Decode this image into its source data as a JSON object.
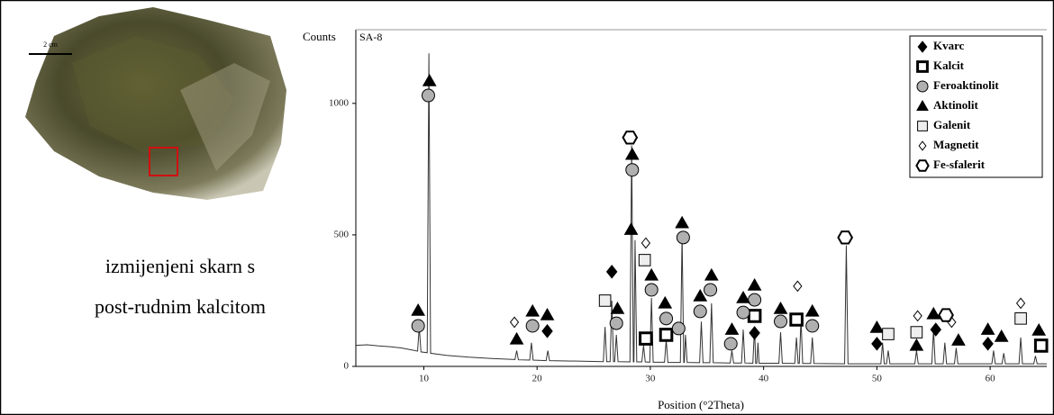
{
  "photo": {
    "scale_label": "2 cm"
  },
  "caption": [
    "izmijenjeni skarn s",
    "post-rudnim kalcitom"
  ],
  "chart_data": {
    "type": "line",
    "title": "SA-8",
    "y_label": "Counts",
    "x_label": "Position (°2Theta)",
    "xlim": [
      4,
      65
    ],
    "xticks": [
      10,
      20,
      30,
      40,
      50,
      60
    ],
    "ylim": [
      0,
      1280
    ],
    "yticks": [
      0,
      500,
      1000
    ],
    "color": "#333333",
    "x": [
      4,
      5,
      6,
      7,
      8,
      9,
      9.45,
      9.6,
      9.75,
      10.3,
      10.45,
      10.6,
      12,
      14,
      16,
      18.05,
      18.2,
      18.35,
      19.35,
      19.5,
      19.65,
      20.8,
      20.95,
      21.1,
      25.85,
      26,
      26.15,
      26.45,
      26.6,
      26.75,
      26.85,
      27,
      27.15,
      28.2,
      28.35,
      28.5,
      28.55,
      28.65,
      28.8,
      29.25,
      29.4,
      29.55,
      29.95,
      30.1,
      30.25,
      31.25,
      31.4,
      31.55,
      32.65,
      32.8,
      32.95,
      33,
      33.1,
      33.25,
      34.35,
      34.5,
      34.65,
      35.25,
      35.4,
      35.55,
      37.05,
      37.2,
      37.35,
      38.05,
      38.2,
      38.35,
      39.05,
      39.2,
      39.3,
      39.4,
      39.5,
      39.6,
      41.35,
      41.5,
      41.65,
      42.75,
      42.9,
      43.05,
      43.15,
      43.3,
      43.45,
      44.15,
      44.3,
      44.45,
      47.15,
      47.3,
      47.45,
      50.35,
      50.5,
      50.65,
      50.85,
      51,
      51.15,
      53.35,
      53.5,
      53.65,
      54.85,
      55,
      55.15,
      55.85,
      56,
      56.15,
      56.85,
      57,
      57.15,
      60.15,
      60.3,
      60.45,
      61.05,
      61.2,
      61.35,
      62.55,
      62.7,
      62.85,
      63.85,
      64,
      64.15,
      65
    ],
    "values": [
      80,
      82,
      78,
      75,
      70,
      62,
      58,
      150,
      55,
      52,
      1190,
      50,
      42,
      35,
      30,
      26,
      60,
      25,
      24,
      90,
      24,
      22,
      60,
      22,
      18,
      150,
      18,
      18,
      250,
      18,
      18,
      120,
      18,
      17,
      840,
      17,
      17,
      480,
      17,
      17,
      80,
      17,
      16,
      260,
      16,
      16,
      100,
      15,
      15,
      500,
      15,
      15,
      120,
      15,
      14,
      170,
      14,
      14,
      240,
      14,
      13,
      60,
      13,
      13,
      140,
      13,
      12,
      150,
      12,
      12,
      90,
      12,
      12,
      130,
      12,
      11,
      110,
      11,
      11,
      180,
      11,
      11,
      110,
      11,
      10,
      460,
      10,
      10,
      90,
      10,
      10,
      60,
      10,
      10,
      60,
      10,
      10,
      140,
      10,
      10,
      90,
      10,
      10,
      70,
      10,
      10,
      60,
      10,
      10,
      50,
      10,
      10,
      110,
      10,
      10,
      40,
      10,
      10
    ],
    "legend": "upper right",
    "series": [
      {
        "name": "Kvarc",
        "marker": "diamond",
        "color": "#000000",
        "x": [
          20.9,
          26.6,
          39.2,
          50,
          55.2,
          59.8
        ],
        "values": [
          134,
          360,
          127,
          86,
          140,
          86
        ]
      },
      {
        "name": "Kalcit",
        "marker": "square-bold",
        "color": "#ffffff",
        "x": [
          29.6,
          31.4,
          39.2,
          42.9,
          64.5
        ],
        "values": [
          106,
          120,
          192,
          178,
          79
        ]
      },
      {
        "name": "Feroaktinolit",
        "marker": "circle",
        "color": "#b0b0b0",
        "x": [
          9.5,
          10.4,
          19.6,
          27,
          28.4,
          30.1,
          31.4,
          32.5,
          32.9,
          34.4,
          35.3,
          37.1,
          38.2,
          39.2,
          41.5,
          44.3
        ],
        "values": [
          154,
          1030,
          154,
          164,
          747,
          291,
          182,
          144,
          490,
          209,
          291,
          86,
          205,
          253,
          171,
          154
        ]
      },
      {
        "name": "Aktinolit",
        "marker": "triangle",
        "color": "#000000",
        "x": [
          9.5,
          10.5,
          18.2,
          19.6,
          20.9,
          27.1,
          28.3,
          28.4,
          30.1,
          31.3,
          32.8,
          34.4,
          35.4,
          37.2,
          38.2,
          39.2,
          41.5,
          44.3,
          50,
          53.5,
          55,
          57.2,
          59.8,
          61,
          64.3
        ],
        "values": [
          212,
          1085,
          103,
          209,
          195,
          219,
          520,
          805,
          346,
          240,
          545,
          267,
          346,
          140,
          260,
          308,
          219,
          209,
          147,
          79,
          199,
          99,
          140,
          113,
          137
        ]
      },
      {
        "name": "Galenit",
        "marker": "square",
        "color": "#eeeeee",
        "x": [
          26,
          29.5,
          51,
          53.5,
          62.7
        ],
        "values": [
          250,
          404,
          123,
          130,
          182
        ]
      },
      {
        "name": "Magnetit",
        "marker": "diamond-open",
        "color": "#ffffff",
        "x": [
          18,
          29.6,
          43,
          53.6,
          56.6,
          62.7
        ],
        "values": [
          168,
          469,
          305,
          192,
          168,
          240
        ]
      },
      {
        "name": "Fe-sfalerit",
        "marker": "hexagon",
        "color": "#ffffff",
        "x": [
          28.2,
          47.2,
          56.1
        ],
        "values": [
          870,
          490,
          195
        ]
      }
    ]
  }
}
